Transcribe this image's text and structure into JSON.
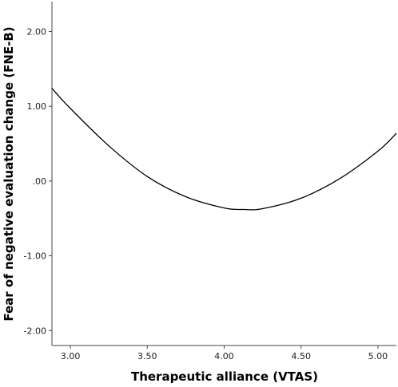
{
  "chart_data": {
    "type": "line",
    "title": "",
    "xlabel": "Therapeutic alliance (VTAS)",
    "ylabel": "Fear of negative evaluation change (FNE-B)",
    "xlim": [
      2.88,
      5.12
    ],
    "ylim": [
      -2.2,
      2.4
    ],
    "x_ticks": [
      {
        "value": 3.0,
        "label": "3.00"
      },
      {
        "value": 3.5,
        "label": "3.50"
      },
      {
        "value": 4.0,
        "label": "4.00"
      },
      {
        "value": 4.5,
        "label": "4.50"
      },
      {
        "value": 5.0,
        "label": "5.00"
      }
    ],
    "y_ticks": [
      {
        "value": 2.0,
        "label": "2.00"
      },
      {
        "value": 1.0,
        "label": "1.00"
      },
      {
        "value": 0.0,
        "label": ".00"
      },
      {
        "value": -1.0,
        "label": "-1.00"
      },
      {
        "value": -2.0,
        "label": "-2.00"
      }
    ],
    "grid": false,
    "series": [
      {
        "x": [
          2.88,
          3.0,
          3.25,
          3.5,
          3.75,
          4.0,
          4.13,
          4.25,
          4.5,
          4.75,
          5.0,
          5.12
        ],
        "y": [
          1.24,
          0.97,
          0.47,
          0.06,
          -0.21,
          -0.36,
          -0.38,
          -0.37,
          -0.23,
          0.03,
          0.4,
          0.64
        ]
      }
    ],
    "colors": {
      "line": "#000000",
      "axis": "#444444"
    }
  }
}
